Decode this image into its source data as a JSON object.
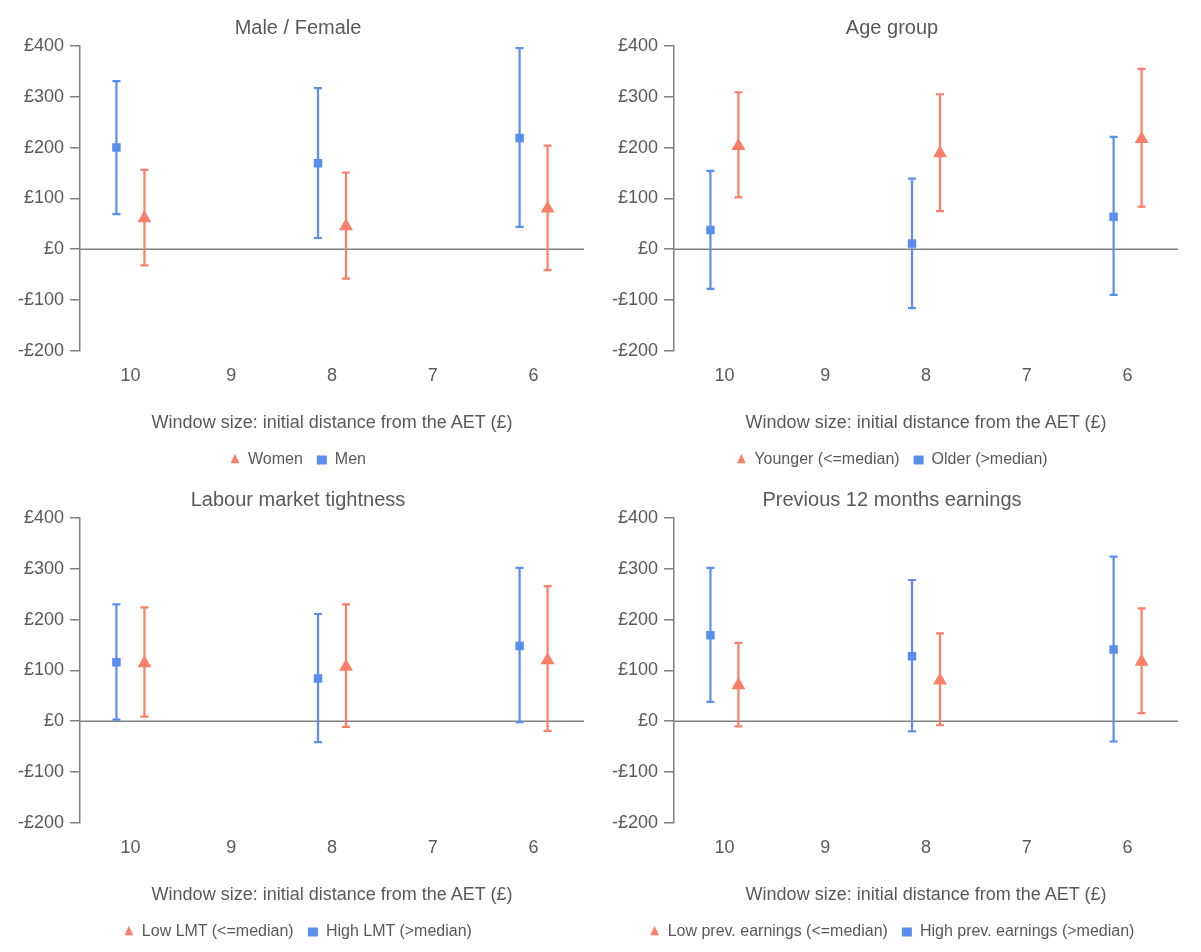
{
  "chart_data": [
    {
      "type": "scatter",
      "title": "Male / Female",
      "xlabel": "Window size: initial distance from the AET (£)",
      "categories": [
        "10",
        "9",
        "8",
        "7",
        "6"
      ],
      "ylim": [
        -200,
        400
      ],
      "yticks": [
        {
          "value": -200,
          "label": "-£200"
        },
        {
          "value": -100,
          "label": "-£100"
        },
        {
          "value": 0,
          "label": "£0"
        },
        {
          "value": 100,
          "label": "£100"
        },
        {
          "value": 200,
          "label": "£200"
        },
        {
          "value": 300,
          "label": "£300"
        },
        {
          "value": 400,
          "label": "£400"
        }
      ],
      "legend": "bottom",
      "series": [
        {
          "name": "Women",
          "color": "#fa7e68",
          "marker": "triangle",
          "values": [
            61,
            null,
            45,
            null,
            80
          ],
          "errors": [
            [
              -32,
              156
            ],
            null,
            [
              -58,
              151
            ],
            null,
            [
              -41,
              204
            ]
          ]
        },
        {
          "name": "Men",
          "color": "#5b8def",
          "marker": "square",
          "values": [
            200,
            null,
            169,
            null,
            219
          ],
          "errors": [
            [
              69,
              331
            ],
            null,
            [
              22,
              317
            ],
            null,
            [
              44,
              396
            ]
          ]
        }
      ]
    },
    {
      "type": "scatter",
      "title": "Age group",
      "xlabel": "Window size: initial distance from the AET (£)",
      "categories": [
        "10",
        "9",
        "8",
        "7",
        "6"
      ],
      "ylim": [
        -200,
        400
      ],
      "yticks": [
        {
          "value": -200,
          "label": "-£200"
        },
        {
          "value": -100,
          "label": "-£100"
        },
        {
          "value": 0,
          "label": "£0"
        },
        {
          "value": 100,
          "label": "£100"
        },
        {
          "value": 200,
          "label": "£200"
        },
        {
          "value": 300,
          "label": "£300"
        },
        {
          "value": 400,
          "label": "£400"
        }
      ],
      "legend": "bottom",
      "series": [
        {
          "name": "Younger (<=median)",
          "color": "#fa7e68",
          "marker": "triangle",
          "values": [
            203,
            null,
            189,
            null,
            217
          ],
          "errors": [
            [
              102,
              309
            ],
            null,
            [
              75,
              305
            ],
            null,
            [
              84,
              355
            ]
          ]
        },
        {
          "name": "Older (>median)",
          "color": "#5b8def",
          "marker": "square",
          "values": [
            38,
            null,
            11,
            null,
            64
          ],
          "errors": [
            [
              -78,
              154
            ],
            null,
            [
              -116,
              139
            ],
            null,
            [
              -90,
              221
            ]
          ]
        }
      ]
    },
    {
      "type": "scatter",
      "title": "Labour market tightness",
      "xlabel": "Window size: initial distance from the AET (£)",
      "categories": [
        "10",
        "9",
        "8",
        "7",
        "6"
      ],
      "ylim": [
        -200,
        400
      ],
      "yticks": [
        {
          "value": -200,
          "label": "-£200"
        },
        {
          "value": -100,
          "label": "-£100"
        },
        {
          "value": 0,
          "label": "£0"
        },
        {
          "value": 100,
          "label": "£100"
        },
        {
          "value": 200,
          "label": "£200"
        },
        {
          "value": 300,
          "label": "£300"
        },
        {
          "value": 400,
          "label": "£400"
        }
      ],
      "legend": "bottom",
      "series": [
        {
          "name": "Low LMT (<=median)",
          "color": "#fa7e68",
          "marker": "triangle",
          "values": [
            114,
            null,
            107,
            null,
            120
          ],
          "errors": [
            [
              9,
              224
            ],
            null,
            [
              -11,
              230
            ],
            null,
            [
              -19,
              266
            ]
          ]
        },
        {
          "name": "High LMT (>median)",
          "color": "#5b8def",
          "marker": "square",
          "values": [
            116,
            null,
            84,
            null,
            148
          ],
          "errors": [
            [
              3,
              230
            ],
            null,
            [
              -41,
              211
            ],
            null,
            [
              -2,
              302
            ]
          ]
        }
      ]
    },
    {
      "type": "scatter",
      "title": "Previous 12 months earnings",
      "xlabel": "Window size: initial distance from the AET (£)",
      "categories": [
        "10",
        "9",
        "8",
        "7",
        "6"
      ],
      "ylim": [
        -200,
        400
      ],
      "yticks": [
        {
          "value": -200,
          "label": "-£200"
        },
        {
          "value": -100,
          "label": "-£100"
        },
        {
          "value": 0,
          "label": "£0"
        },
        {
          "value": 100,
          "label": "£100"
        },
        {
          "value": 200,
          "label": "£200"
        },
        {
          "value": 300,
          "label": "£300"
        },
        {
          "value": 400,
          "label": "£400"
        }
      ],
      "legend": "bottom",
      "series": [
        {
          "name": "Low prev. earnings (<=median)",
          "color": "#fa7e68",
          "marker": "triangle",
          "values": [
            71,
            null,
            80,
            null,
            117
          ],
          "errors": [
            [
              -10,
              154
            ],
            null,
            [
              -8,
              173
            ],
            null,
            [
              16,
              222
            ]
          ]
        },
        {
          "name": "High prev. earnings (>median)",
          "color": "#5b8def",
          "marker": "square",
          "values": [
            169,
            null,
            128,
            null,
            141
          ],
          "errors": [
            [
              38,
              302
            ],
            null,
            [
              -20,
              278
            ],
            null,
            [
              -40,
              324
            ]
          ]
        }
      ]
    }
  ]
}
